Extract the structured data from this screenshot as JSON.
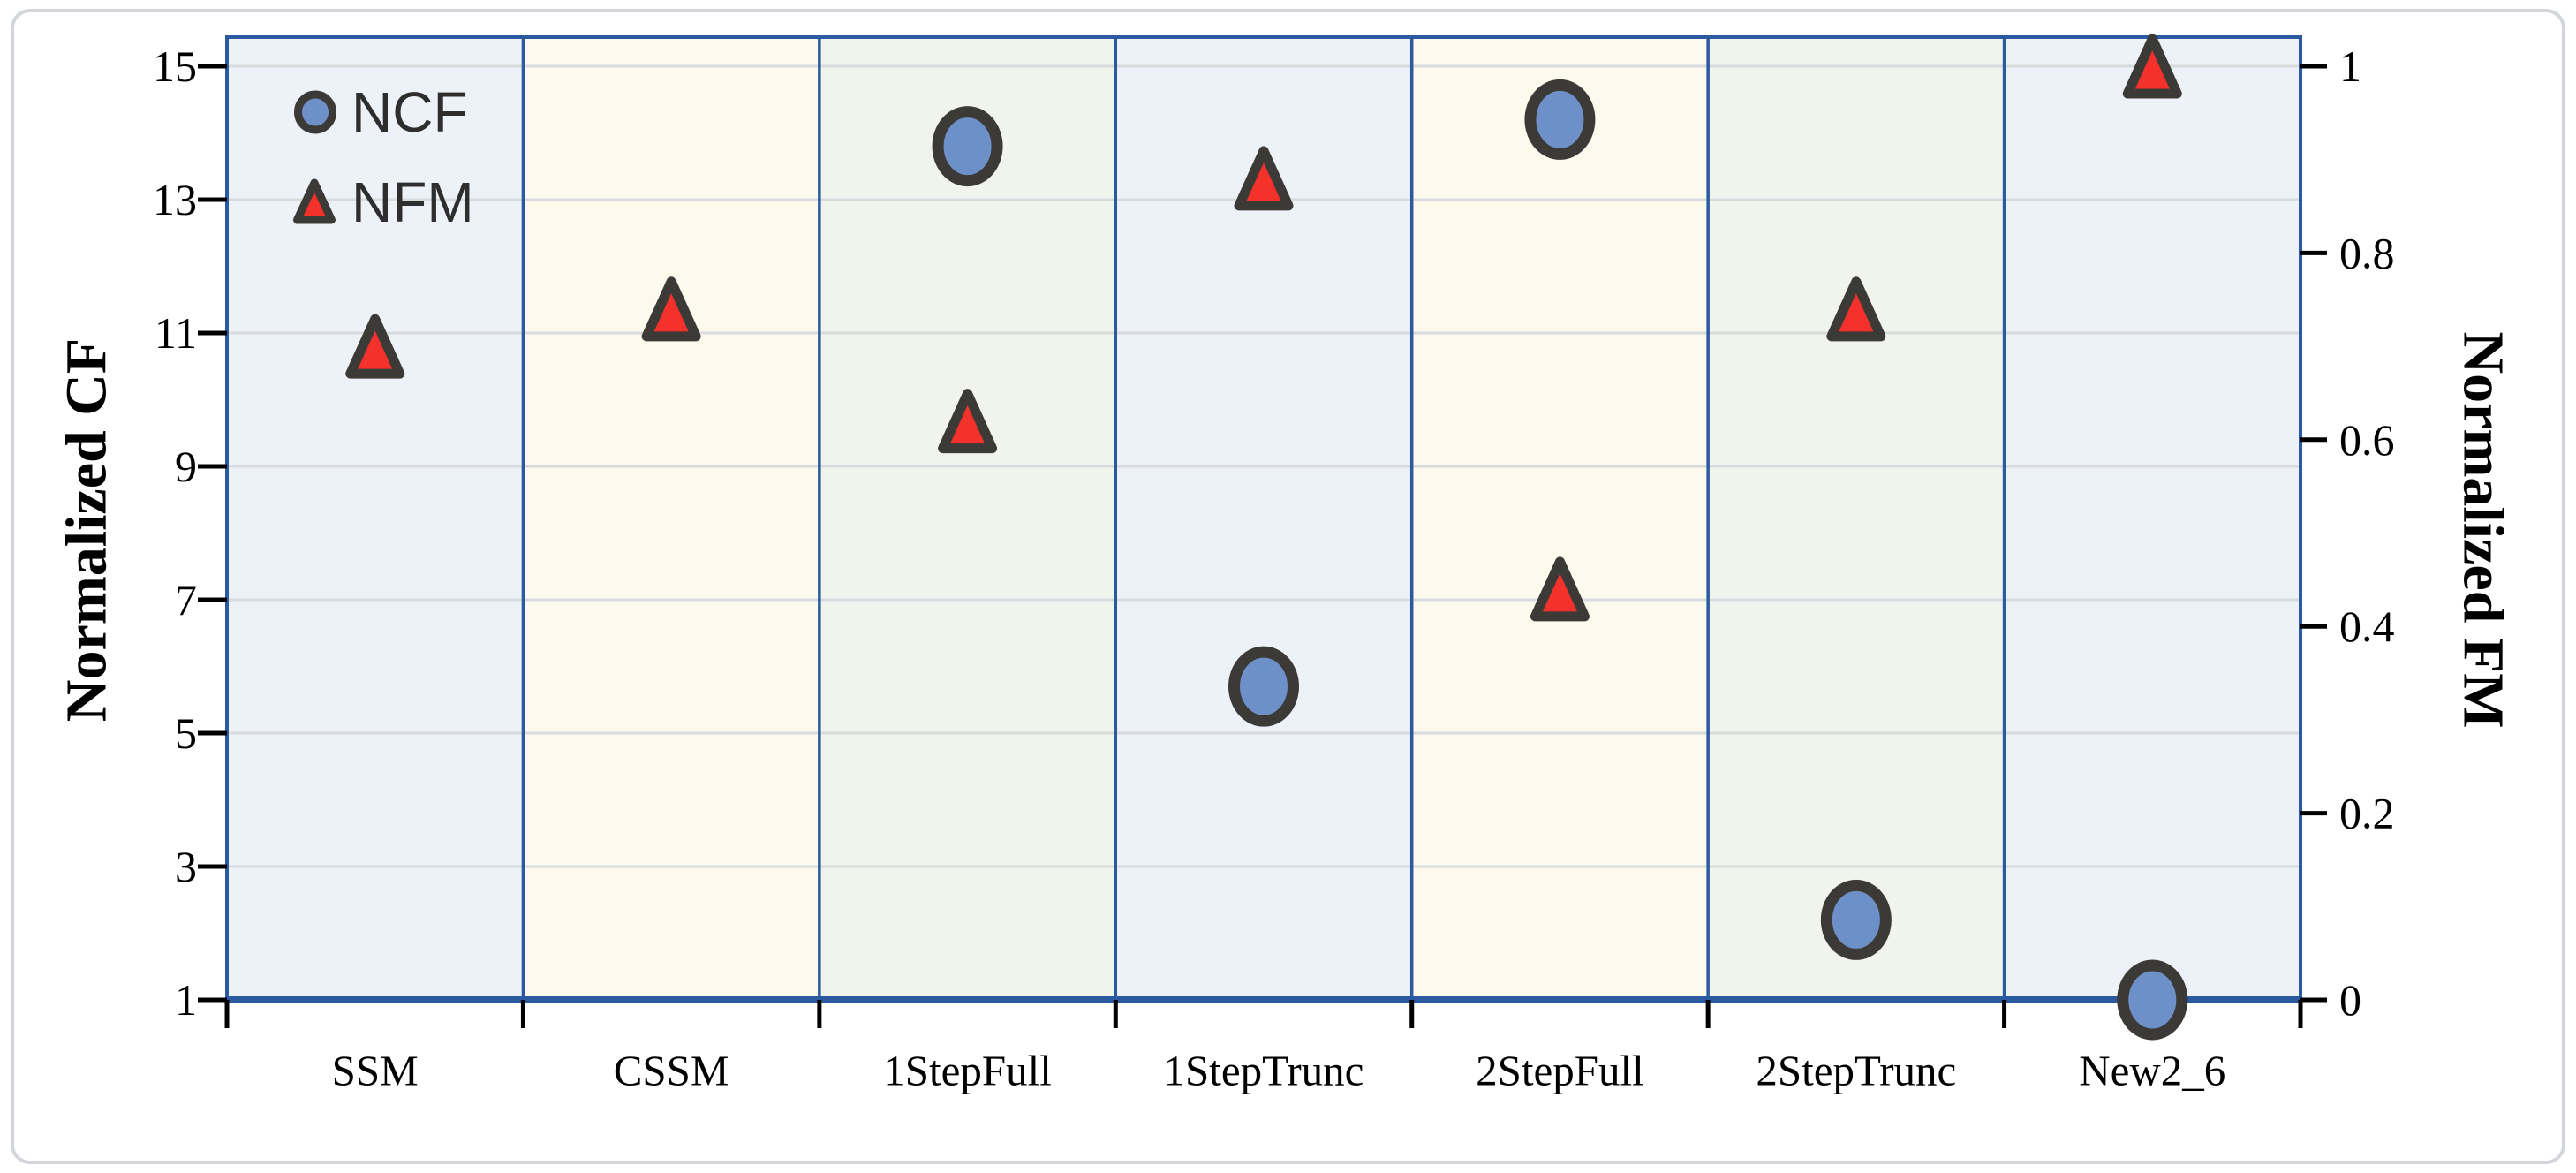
{
  "chart_data": {
    "type": "scatter",
    "title": "",
    "categories": [
      "SSM",
      "CSSM",
      "1StepFull",
      "1StepTrunc",
      "2StepFull",
      "2StepTrunc",
      "New2_6"
    ],
    "series": [
      {
        "name": "NCF",
        "axis": "left",
        "marker": "circle",
        "values": [
          null,
          null,
          13.8,
          5.7,
          14.2,
          2.2,
          1.0
        ]
      },
      {
        "name": "NFM",
        "axis": "right",
        "marker": "triangle",
        "values": [
          0.7,
          0.74,
          0.62,
          0.88,
          0.44,
          0.74,
          1.0
        ]
      }
    ],
    "left_axis": {
      "label": "Normalized CF",
      "ticks": [
        15,
        13,
        11,
        9,
        7,
        5,
        3,
        1
      ],
      "range": [
        1,
        15
      ]
    },
    "right_axis": {
      "label": "Normalized FM",
      "tick_labels": [
        "1",
        "0.8",
        "0.6",
        "0.4",
        "0.2",
        "0"
      ],
      "range": [
        0,
        1
      ]
    },
    "grid": true,
    "legend_position": "top-left",
    "band_backgrounds": true
  },
  "legend": {
    "ncf_label": "NCF",
    "nfm_label": "NFM"
  },
  "colors": {
    "band_cycle": [
      "#edf1f8",
      "#fdf9ec",
      "#f0f4ec",
      "#edf1f8",
      "#fdf9ec",
      "#f0f4ec",
      "#edf1f8"
    ],
    "plot_border": "#2b5aa0",
    "gridline": "#d8dadb",
    "tick_mark": "#000000",
    "ncf_fill": "#6e90c8",
    "nfm_fill": "#f5312b",
    "marker_stroke": "#3b3a37",
    "legend_text": "#2e2e2e",
    "figure_border": "#d2d5da"
  }
}
